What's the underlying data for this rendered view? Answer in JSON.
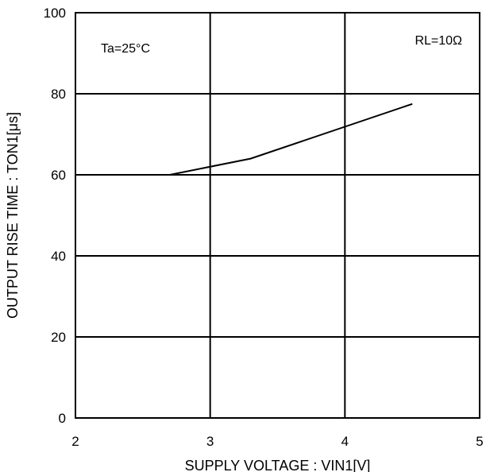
{
  "chart_data": {
    "type": "line",
    "xlabel": "SUPPLY VOLTAGE : VIN1[V]",
    "ylabel": "OUTPUT RISE TIME : TON1[μs]",
    "xlim": [
      2,
      5
    ],
    "ylim": [
      0,
      100
    ],
    "x_ticks": [
      "2",
      "3",
      "4",
      "5"
    ],
    "y_ticks": [
      "0",
      "20",
      "40",
      "60",
      "80",
      "100"
    ],
    "grid": true,
    "annotations": {
      "left": "Ta=25°C",
      "right": "RL=10Ω"
    },
    "series": [
      {
        "x": [
          2.7,
          3.3,
          4.5
        ],
        "y": [
          60,
          64,
          77.5
        ]
      }
    ]
  }
}
